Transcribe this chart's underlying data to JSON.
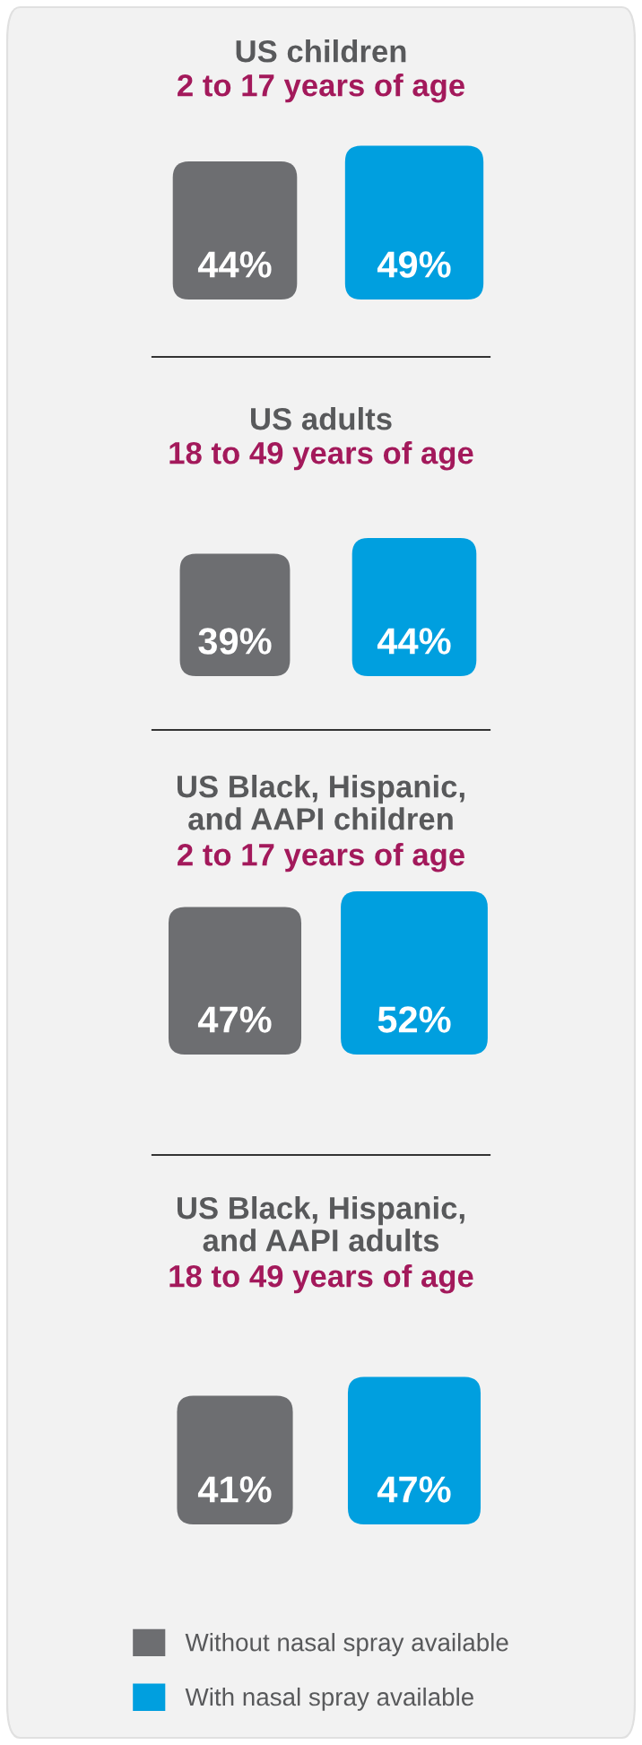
{
  "chart_data": [
    {
      "type": "bar",
      "title": "US children",
      "subtitle": "2 to 17 years of age",
      "categories": [
        null
      ],
      "series": [
        {
          "color": "#6d6e71",
          "values": [
            44
          ],
          "value_labels": [
            "44%"
          ]
        },
        {
          "color": "#009fdf",
          "values": [
            49
          ],
          "value_labels": [
            "49%"
          ]
        }
      ]
    },
    {
      "type": "bar",
      "title": "US adults",
      "subtitle": "18 to 49 years of age",
      "categories": [
        null
      ],
      "series": [
        {
          "color": "#6d6e71",
          "values": [
            39
          ],
          "value_labels": [
            "39%"
          ]
        },
        {
          "color": "#009fdf",
          "values": [
            44
          ],
          "value_labels": [
            "44%"
          ]
        }
      ]
    },
    {
      "type": "bar",
      "title": "US Black, Hispanic,\nand AAPI children",
      "subtitle": "2 to 17 years of age",
      "categories": [
        null
      ],
      "series": [
        {
          "color": "#6d6e71",
          "values": [
            47
          ],
          "value_labels": [
            "47%"
          ]
        },
        {
          "color": "#009fdf",
          "values": [
            52
          ],
          "value_labels": [
            "52%"
          ]
        }
      ]
    },
    {
      "type": "bar",
      "title": "US Black, Hispanic,\nand AAPI adults",
      "subtitle": "18 to 49 years of age",
      "categories": [
        null
      ],
      "legend": "bottom",
      "series": [
        {
          "name": "Without nasal spray available",
          "color": "#6d6e71",
          "values": [
            41
          ],
          "value_labels": [
            "41%"
          ]
        },
        {
          "name": "With nasal spray available",
          "color": "#009fdf",
          "values": [
            47
          ],
          "value_labels": [
            "47%"
          ]
        }
      ]
    }
  ]
}
